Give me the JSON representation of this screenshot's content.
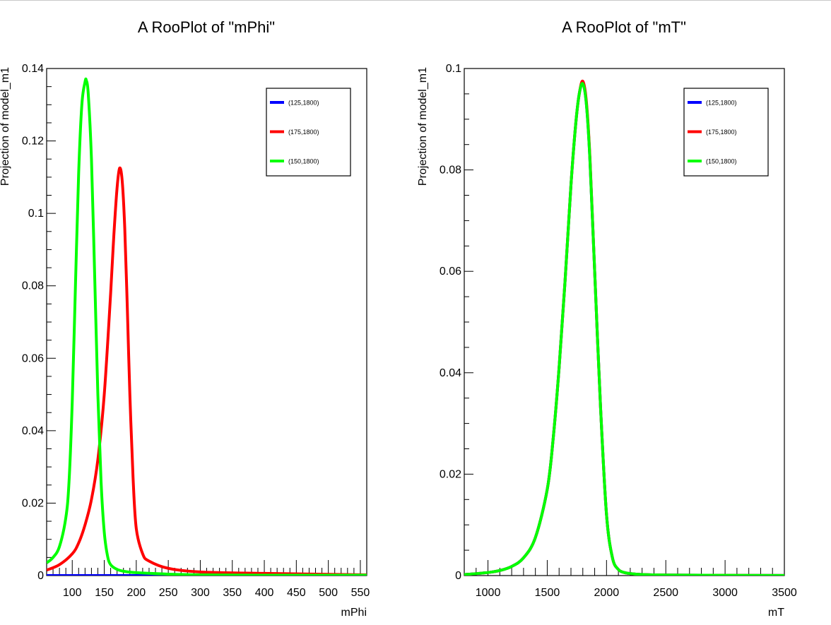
{
  "colors": {
    "blue": "#0000ff",
    "red": "#ff0000",
    "green": "#00ff00"
  },
  "chart_data": [
    {
      "id": "left",
      "type": "line",
      "title": "A RooPlot of \"mPhi\"",
      "xlabel": "mPhi",
      "ylabel": "Projection of model_m1",
      "xlim": [
        60,
        560
      ],
      "ylim": [
        0,
        0.14
      ],
      "x_tick_labels": [
        "100",
        "150",
        "200",
        "250",
        "300",
        "350",
        "400",
        "450",
        "500",
        "550"
      ],
      "x_tick_values": [
        100,
        150,
        200,
        250,
        300,
        350,
        400,
        450,
        500,
        550
      ],
      "y_tick_labels": [
        "0",
        "0.02",
        "0.04",
        "0.06",
        "0.08",
        "0.1",
        "0.12",
        "0.14"
      ],
      "y_tick_values": [
        0,
        0.02,
        0.04,
        0.06,
        0.08,
        0.1,
        0.12,
        0.14
      ],
      "legend": {
        "placement": "top-right",
        "entries": [
          "(125,1800)",
          "(175,1800)",
          "(150,1800)"
        ]
      },
      "series": [
        {
          "name": "(125,1800)",
          "color": "#0000ff",
          "x": [
            60,
            80,
            100,
            110,
            120,
            125,
            130,
            140,
            150,
            160,
            170,
            180,
            200,
            220,
            300,
            400,
            560
          ],
          "y": [
            0,
            0,
            0,
            0,
            0,
            0,
            0,
            0,
            0,
            0,
            0,
            0,
            0,
            0,
            0,
            0,
            0
          ]
        },
        {
          "name": "(175,1800)",
          "color": "#ff0000",
          "x": [
            60,
            80,
            100,
            110,
            120,
            130,
            140,
            150,
            160,
            165,
            170,
            174,
            178,
            182,
            186,
            190,
            195,
            200,
            210,
            220,
            250,
            300,
            400,
            560
          ],
          "y": [
            0.0015,
            0.003,
            0.006,
            0.009,
            0.014,
            0.021,
            0.032,
            0.05,
            0.078,
            0.094,
            0.107,
            0.1125,
            0.109,
            0.096,
            0.074,
            0.05,
            0.027,
            0.013,
            0.006,
            0.004,
            0.002,
            0.001,
            0.0006,
            0.0002
          ]
        },
        {
          "name": "(150,1800)",
          "color": "#00ff00",
          "x": [
            60,
            70,
            80,
            90,
            95,
            100,
            105,
            110,
            115,
            120,
            122,
            125,
            130,
            135,
            140,
            145,
            150,
            155,
            160,
            170,
            180,
            200,
            250,
            300,
            400,
            560
          ],
          "y": [
            0.0035,
            0.005,
            0.008,
            0.016,
            0.026,
            0.048,
            0.08,
            0.111,
            0.13,
            0.1363,
            0.1367,
            0.133,
            0.115,
            0.083,
            0.05,
            0.026,
            0.012,
            0.0055,
            0.003,
            0.0017,
            0.0012,
            0.0008,
            0.0004,
            0.0002,
            0.0001,
            0.0001
          ]
        }
      ]
    },
    {
      "id": "right",
      "type": "line",
      "title": "A RooPlot of \"mT\"",
      "xlabel": "mT",
      "ylabel": "Projection of model_m1",
      "xlim": [
        800,
        3500
      ],
      "ylim": [
        0,
        0.1
      ],
      "x_tick_labels": [
        "1000",
        "1500",
        "2000",
        "2500",
        "3000",
        "3500"
      ],
      "x_tick_values": [
        1000,
        1500,
        2000,
        2500,
        3000,
        3500
      ],
      "y_tick_labels": [
        "0",
        "0.02",
        "0.04",
        "0.06",
        "0.08",
        "0.1"
      ],
      "y_tick_values": [
        0,
        0.02,
        0.04,
        0.06,
        0.08,
        0.1
      ],
      "legend": {
        "placement": "top-right",
        "entries": [
          "(125,1800)",
          "(175,1800)",
          "(150,1800)"
        ]
      },
      "series": [
        {
          "name": "(125,1800)",
          "color": "#0000ff",
          "x": [
            800,
            1000,
            1100,
            1200,
            1300,
            1400,
            1500,
            1550,
            1600,
            1650,
            1700,
            1740,
            1770,
            1800,
            1830,
            1860,
            1900,
            1950,
            2000,
            2050,
            2100,
            2150,
            2200,
            2300,
            2500,
            3000,
            3500
          ],
          "y": [
            0.0002,
            0.0006,
            0.001,
            0.0018,
            0.0035,
            0.0075,
            0.017,
            0.027,
            0.041,
            0.058,
            0.077,
            0.089,
            0.095,
            0.097,
            0.093,
            0.082,
            0.06,
            0.033,
            0.012,
            0.0035,
            0.0012,
            0.0006,
            0.0004,
            0.0002,
            0.0001,
            5e-05,
            2e-05
          ]
        },
        {
          "name": "(175,1800)",
          "color": "#ff0000",
          "x": [
            800,
            1000,
            1100,
            1200,
            1300,
            1400,
            1500,
            1550,
            1600,
            1650,
            1700,
            1740,
            1770,
            1800,
            1830,
            1860,
            1900,
            1950,
            2000,
            2050,
            2100,
            2150,
            2200,
            2300,
            2500,
            3000,
            3500
          ],
          "y": [
            0.0002,
            0.0006,
            0.001,
            0.0018,
            0.0035,
            0.0075,
            0.017,
            0.027,
            0.041,
            0.058,
            0.077,
            0.089,
            0.095,
            0.0975,
            0.0935,
            0.0825,
            0.06,
            0.033,
            0.012,
            0.0035,
            0.0012,
            0.0006,
            0.0004,
            0.0002,
            0.0001,
            5e-05,
            2e-05
          ]
        },
        {
          "name": "(150,1800)",
          "color": "#00ff00",
          "x": [
            800,
            1000,
            1100,
            1200,
            1300,
            1400,
            1500,
            1550,
            1600,
            1650,
            1700,
            1740,
            1770,
            1800,
            1830,
            1860,
            1900,
            1950,
            2000,
            2050,
            2100,
            2150,
            2200,
            2300,
            2500,
            3000,
            3500
          ],
          "y": [
            0.0002,
            0.0006,
            0.001,
            0.0018,
            0.0035,
            0.0075,
            0.017,
            0.027,
            0.041,
            0.058,
            0.077,
            0.089,
            0.095,
            0.097,
            0.093,
            0.082,
            0.06,
            0.033,
            0.012,
            0.0035,
            0.0012,
            0.0006,
            0.0004,
            0.0002,
            0.0001,
            5e-05,
            2e-05
          ]
        }
      ]
    }
  ]
}
